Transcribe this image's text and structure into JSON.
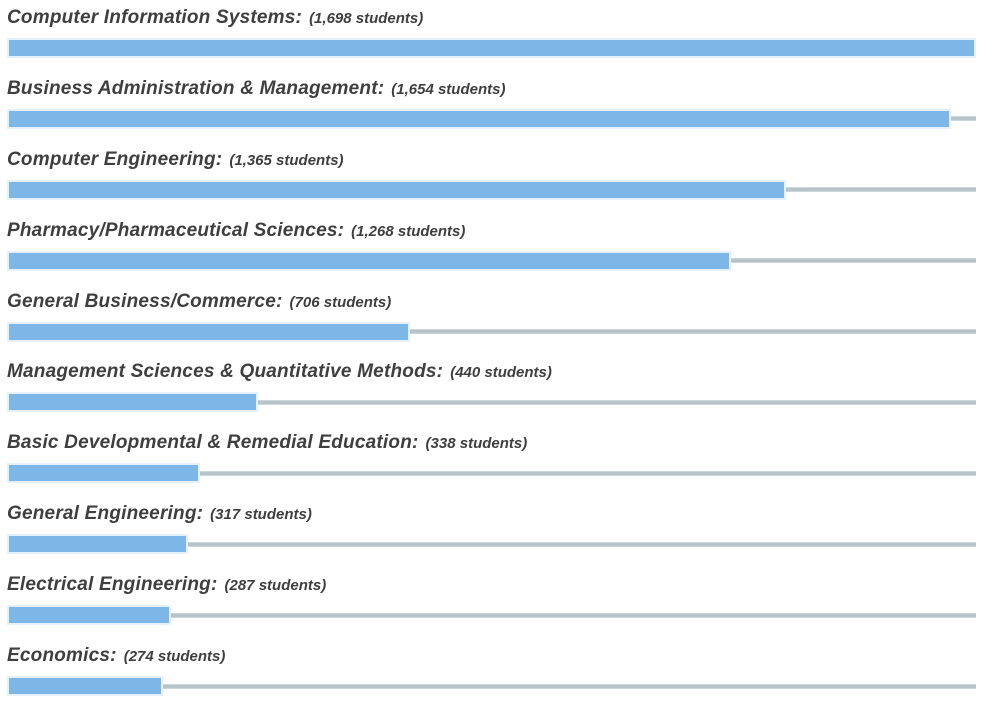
{
  "chart_data": {
    "type": "bar",
    "orientation": "horizontal",
    "title": "",
    "xlabel": "",
    "ylabel": "",
    "max_value": 1698,
    "categories": [
      "Computer Information Systems",
      "Business Administration & Management",
      "Computer Engineering",
      "Pharmacy/Pharmaceutical Sciences",
      "General Business/Commerce",
      "Management Sciences & Quantitative Methods",
      "Basic Developmental & Remedial Education",
      "General Engineering",
      "Electrical Engineering",
      "Economics"
    ],
    "values": [
      1698,
      1654,
      1365,
      1268,
      706,
      440,
      338,
      317,
      287,
      274
    ],
    "data_labels": [
      "(1,698 students)",
      "(1,654 students)",
      "(1,365 students)",
      "(1,268 students)",
      "(706 students)",
      "(440 students)",
      "(338 students)",
      "(317 students)",
      "(287 students)",
      "(274 students)"
    ],
    "bar_color": "#7db7e7",
    "bar_border_color": "#e6f0fb",
    "baseline_color": "#b6c4c9",
    "text_color": "#3f3f3f",
    "grid": false,
    "legend": false
  },
  "rows": [
    {
      "name": "Computer Information Systems:",
      "count_label": "(1,698 students)",
      "value": 1698
    },
    {
      "name": "Business Administration & Management:",
      "count_label": "(1,654 students)",
      "value": 1654
    },
    {
      "name": "Computer Engineering:",
      "count_label": "(1,365 students)",
      "value": 1365
    },
    {
      "name": "Pharmacy/Pharmaceutical Sciences:",
      "count_label": "(1,268 students)",
      "value": 1268
    },
    {
      "name": "General Business/Commerce:",
      "count_label": "(706 students)",
      "value": 706
    },
    {
      "name": "Management Sciences & Quantitative Methods:",
      "count_label": "(440 students)",
      "value": 440
    },
    {
      "name": "Basic Developmental & Remedial Education:",
      "count_label": "(338 students)",
      "value": 338
    },
    {
      "name": "General Engineering:",
      "count_label": "(317 students)",
      "value": 317
    },
    {
      "name": "Electrical Engineering:",
      "count_label": "(287 students)",
      "value": 287
    },
    {
      "name": "Economics:",
      "count_label": "(274 students)",
      "value": 274
    }
  ]
}
